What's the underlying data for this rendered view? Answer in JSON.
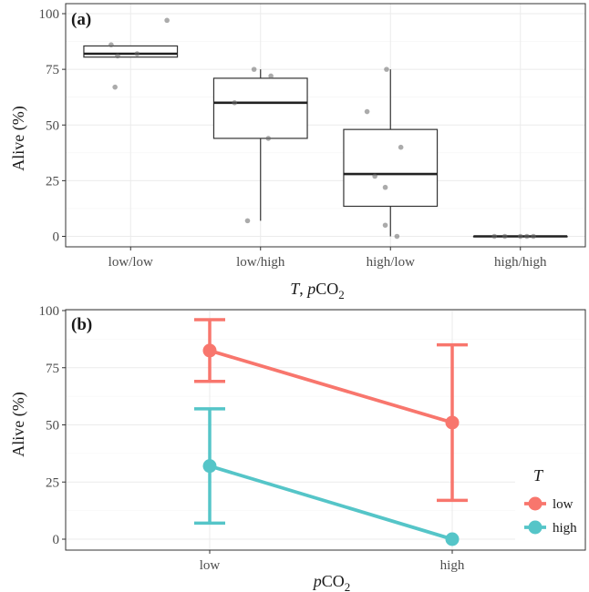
{
  "chart_data": [
    {
      "panel": "(a)",
      "type": "box",
      "xlabel_parts": [
        "T",
        ", ",
        "p",
        "CO",
        "2"
      ],
      "ylabel": "Alive (%)",
      "ylim": [
        0,
        100
      ],
      "yticks": [
        0,
        25,
        50,
        75,
        100
      ],
      "grid": true,
      "categories": [
        "low/low",
        "low/high",
        "high/low",
        "high/high"
      ],
      "boxes": [
        {
          "category": "low/low",
          "lower_whisker": 80.5,
          "q1": 80.5,
          "median": 82,
          "q3": 85.5,
          "upper_whisker": 85.5
        },
        {
          "category": "low/high",
          "lower_whisker": 7,
          "q1": 44,
          "median": 60,
          "q3": 71,
          "upper_whisker": 75
        },
        {
          "category": "high/low",
          "lower_whisker": 0,
          "q1": 13.5,
          "median": 28,
          "q3": 48,
          "upper_whisker": 75
        },
        {
          "category": "high/high",
          "lower_whisker": 0,
          "q1": 0,
          "median": 0,
          "q3": 0,
          "upper_whisker": 0
        }
      ],
      "points": [
        {
          "category": "low/low",
          "jitter": -0.15,
          "y": 86
        },
        {
          "category": "low/low",
          "jitter": -0.1,
          "y": 81
        },
        {
          "category": "low/low",
          "jitter": 0.05,
          "y": 82
        },
        {
          "category": "low/low",
          "jitter": 0.28,
          "y": 97
        },
        {
          "category": "low/low",
          "jitter": -0.12,
          "y": 67
        },
        {
          "category": "low/high",
          "jitter": -0.05,
          "y": 75
        },
        {
          "category": "low/high",
          "jitter": 0.08,
          "y": 72
        },
        {
          "category": "low/high",
          "jitter": -0.2,
          "y": 60
        },
        {
          "category": "low/high",
          "jitter": 0.06,
          "y": 44
        },
        {
          "category": "low/high",
          "jitter": -0.1,
          "y": 7
        },
        {
          "category": "high/low",
          "jitter": -0.03,
          "y": 75
        },
        {
          "category": "high/low",
          "jitter": -0.18,
          "y": 56
        },
        {
          "category": "high/low",
          "jitter": 0.08,
          "y": 40
        },
        {
          "category": "high/low",
          "jitter": -0.12,
          "y": 27
        },
        {
          "category": "high/low",
          "jitter": -0.04,
          "y": 22
        },
        {
          "category": "high/low",
          "jitter": -0.04,
          "y": 5
        },
        {
          "category": "high/low",
          "jitter": 0.05,
          "y": 0
        },
        {
          "category": "high/high",
          "jitter": -0.2,
          "y": 0
        },
        {
          "category": "high/high",
          "jitter": -0.12,
          "y": 0
        },
        {
          "category": "high/high",
          "jitter": 0.0,
          "y": 0
        },
        {
          "category": "high/high",
          "jitter": 0.05,
          "y": 0
        },
        {
          "category": "high/high",
          "jitter": 0.1,
          "y": 0
        }
      ]
    },
    {
      "panel": "(b)",
      "type": "line",
      "xlabel_parts": [
        "p",
        "CO",
        "2"
      ],
      "ylabel": "Alive (%)",
      "ylim": [
        0,
        100
      ],
      "yticks": [
        0,
        25,
        50,
        75,
        100
      ],
      "grid": true,
      "categories": [
        "low",
        "high"
      ],
      "legend": {
        "title": "T",
        "placement": "right"
      },
      "series": [
        {
          "name": "low",
          "color": "#f8766d",
          "values": [
            82.5,
            51
          ],
          "lower": [
            69,
            17
          ],
          "upper": [
            96,
            85
          ]
        },
        {
          "name": "high",
          "color": "#55c5c8",
          "values": [
            32,
            0
          ],
          "lower": [
            7,
            null
          ],
          "upper": [
            57,
            null
          ]
        }
      ]
    }
  ]
}
